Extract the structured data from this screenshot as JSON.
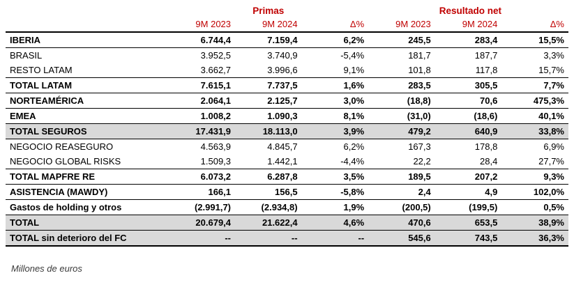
{
  "table": {
    "groups": [
      {
        "label": "Primas"
      },
      {
        "label": "Resultado neto"
      }
    ],
    "columns": [
      "9M 2023",
      "9M 2024",
      "Δ%",
      "9M 2023",
      "9M 2024",
      "Δ%"
    ],
    "rows": [
      {
        "label": "IBERIA",
        "values": [
          "6.744,4",
          "7.159,4",
          "6,2%",
          "245,5",
          "283,4",
          "15,5%"
        ]
      },
      {
        "label": "BRASIL",
        "values": [
          "3.952,5",
          "3.740,9",
          "-5,4%",
          "181,7",
          "187,7",
          "3,3%"
        ]
      },
      {
        "label": "RESTO LATAM",
        "values": [
          "3.662,7",
          "3.996,6",
          "9,1%",
          "101,8",
          "117,8",
          "15,7%"
        ]
      },
      {
        "label": "TOTAL LATAM",
        "values": [
          "7.615,1",
          "7.737,5",
          "1,6%",
          "283,5",
          "305,5",
          "7,7%"
        ]
      },
      {
        "label": "NORTEAMÉRICA",
        "values": [
          "2.064,1",
          "2.125,7",
          "3,0%",
          "(18,8)",
          "70,6",
          "475,3%"
        ]
      },
      {
        "label": "EMEA",
        "values": [
          "1.008,2",
          "1.090,3",
          "8,1%",
          "(31,0)",
          "(18,6)",
          "40,1%"
        ]
      },
      {
        "label": "TOTAL SEGUROS",
        "values": [
          "17.431,9",
          "18.113,0",
          "3,9%",
          "479,2",
          "640,9",
          "33,8%"
        ]
      },
      {
        "label": "NEGOCIO REASEGURO",
        "values": [
          "4.563,9",
          "4.845,7",
          "6,2%",
          "167,3",
          "178,8",
          "6,9%"
        ]
      },
      {
        "label": "NEGOCIO GLOBAL RISKS",
        "values": [
          "1.509,3",
          "1.442,1",
          "-4,4%",
          "22,2",
          "28,4",
          "27,7%"
        ]
      },
      {
        "label": "TOTAL MAPFRE RE",
        "values": [
          "6.073,2",
          "6.287,8",
          "3,5%",
          "189,5",
          "207,2",
          "9,3%"
        ]
      },
      {
        "label": "ASISTENCIA (MAWDY)",
        "values": [
          "166,1",
          "156,5",
          "-5,8%",
          "2,4",
          "4,9",
          "102,0%"
        ]
      },
      {
        "label": "Gastos de holding y otros",
        "values": [
          "(2.991,7)",
          "(2.934,8)",
          "1,9%",
          "(200,5)",
          "(199,5)",
          "0,5%"
        ]
      },
      {
        "label": "TOTAL",
        "values": [
          "20.679,4",
          "21.622,4",
          "4,6%",
          "470,6",
          "653,5",
          "38,9%"
        ]
      },
      {
        "label": "TOTAL sin deterioro del FC",
        "values": [
          "--",
          "--",
          "--",
          "545,6",
          "743,5",
          "36,3%"
        ]
      }
    ]
  },
  "footnote": "Millones de euros",
  "colors": {
    "accent_red": "#C00000",
    "shaded_row": "#D9D9D9",
    "border": "#000000"
  }
}
